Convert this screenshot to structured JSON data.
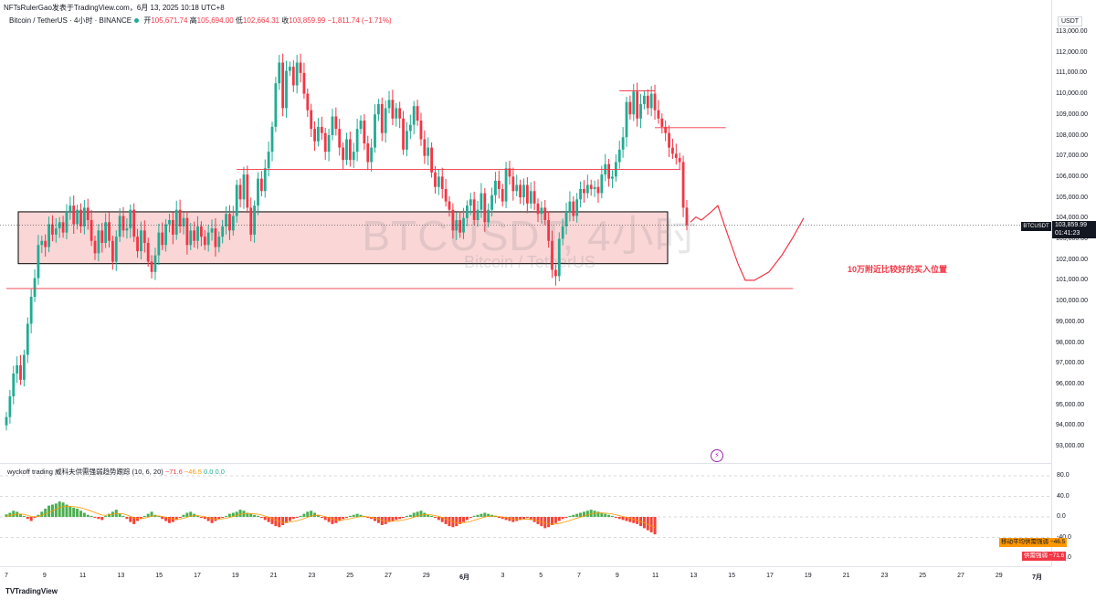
{
  "attribution": "NFTsRulerGao发表于TradingView.com，6月 13, 2025 10:18 UTC+8",
  "symbol": {
    "name": "Bitcoin / TetherUS · 4小时 · BINANCE",
    "open_label": "开",
    "open": "105,671.74",
    "high_label": "高",
    "high": "105,694.00",
    "low_label": "低",
    "low": "102,664.31",
    "close_label": "收",
    "close": "103,859.99",
    "change": "−1,811.74 (−1.71%)"
  },
  "currency": "USDT",
  "price_axis": {
    "ticks": [
      "113,000.00",
      "112,000.00",
      "111,000.00",
      "110,000.00",
      "109,000.00",
      "108,000.00",
      "107,000.00",
      "106,000.00",
      "105,000.00",
      "104,000.00",
      "103,000.00",
      "102,000.00",
      "101,000.00",
      "100,000.00",
      "99,000.00",
      "98,000.00",
      "97,000.00",
      "96,000.00",
      "95,000.00",
      "94,000.00",
      "93,000.00"
    ],
    "values": [
      113000,
      112000,
      111000,
      110000,
      109000,
      108000,
      107000,
      106000,
      105000,
      104000,
      103000,
      102000,
      101000,
      100000,
      99000,
      98000,
      97000,
      96000,
      95000,
      94000,
      93000
    ]
  },
  "last_price": {
    "symbol": "BTCUSDT",
    "price": "103,859.99",
    "countdown": "01:41:23"
  },
  "watermark": {
    "main": "BTCUSDT, 4小时",
    "sub": "Bitcoin / TetherUS"
  },
  "annotation": "10万附近比较好的买入位置",
  "indicator": {
    "title": "wyckoff trading 威科夫供需强弱趋势跟踪 (10, 6, 20)",
    "v1": "−71.6",
    "v2": "−46.5",
    "v3": "0.0",
    "v4": "0.0",
    "ticks": [
      "80.0",
      "40.0",
      "0.0",
      "-40.0",
      "-80.0"
    ],
    "ma_label": "移动平均供需强弱",
    "ma_value": "−46.5",
    "strength_label": "供需强弱",
    "strength_value": "−71.6"
  },
  "time_axis": [
    "7",
    "9",
    "11",
    "13",
    "15",
    "17",
    "19",
    "21",
    "23",
    "25",
    "27",
    "29",
    "6月",
    "3",
    "5",
    "7",
    "9",
    "11",
    "13",
    "15",
    "17",
    "19",
    "21",
    "23",
    "25",
    "27",
    "29",
    "7月"
  ],
  "footer": {
    "logo": "TradingView"
  },
  "colors": {
    "up": "#22ab94",
    "down": "#f23645",
    "zone": "#f8c8c8",
    "hist_up": "#4caf50",
    "hist_down": "#f44336",
    "signal": "#ff9800"
  },
  "chart_data": {
    "type": "candlestick",
    "interval": "4h",
    "ylim": [
      92500,
      113800
    ],
    "closes": [
      94600,
      95600,
      96700,
      97100,
      96400,
      97600,
      99100,
      100400,
      101300,
      102900,
      103100,
      102800,
      103900,
      103400,
      103700,
      104000,
      103500,
      104500,
      104800,
      103900,
      104600,
      103800,
      104700,
      104100,
      103100,
      102500,
      103600,
      103000,
      104000,
      103100,
      102100,
      103300,
      104300,
      103600,
      103700,
      104600,
      103300,
      102600,
      103600,
      103000,
      102100,
      101600,
      102400,
      103500,
      102900,
      103900,
      104100,
      103400,
      104600,
      103800,
      104200,
      102900,
      103600,
      103100,
      103800,
      103300,
      102900,
      103500,
      103700,
      102800,
      103300,
      103800,
      104400,
      103600,
      104300,
      105800,
      105100,
      106300,
      104700,
      103400,
      104800,
      106100,
      105500,
      106600,
      107400,
      108600,
      110700,
      111700,
      109500,
      111300,
      111500,
      110600,
      111700,
      111200,
      110200,
      109400,
      108500,
      107900,
      108600,
      108300,
      107400,
      108200,
      109100,
      108500,
      107600,
      107000,
      108000,
      107000,
      107400,
      108500,
      108900,
      107800,
      106900,
      107600,
      109200,
      109700,
      108300,
      109500,
      109900,
      109000,
      109500,
      109000,
      107500,
      108400,
      108700,
      109600,
      108900,
      108000,
      107200,
      107600,
      106400,
      105700,
      106200,
      105600,
      105000,
      104600,
      103600,
      104100,
      103500,
      104200,
      104800,
      105100,
      104100,
      104600,
      105400,
      104000,
      104600,
      105300,
      106000,
      105600,
      105000,
      106600,
      106200,
      105500,
      105800,
      105200,
      105800,
      104900,
      105500,
      104900,
      104400,
      104700,
      104100,
      103100,
      101700,
      101400,
      103200,
      103800,
      104500,
      105000,
      104300,
      105100,
      105600,
      105400,
      105800,
      105600,
      105700,
      105400,
      106300,
      106800,
      106100,
      106200,
      106900,
      107500,
      108100,
      109800,
      109200,
      110300,
      109000,
      109700,
      110100,
      109500,
      110200,
      109400,
      109000,
      108600,
      108300,
      107600,
      107300,
      107100,
      106900,
      104700,
      103860
    ],
    "series": [
      {
        "name": "BTCUSDT",
        "close_last": 103859.99
      }
    ],
    "lines": [
      {
        "type": "horizontal",
        "price": 106550,
        "from_index": 65,
        "to_index": 190
      },
      {
        "type": "horizontal",
        "price": 108560,
        "from_index": 183,
        "to_index": 203
      },
      {
        "type": "horizontal",
        "price": 110340,
        "from_index": 173,
        "to_index": 183
      },
      {
        "type": "horizontal",
        "price": 100800,
        "from_index": 0,
        "to_index": 222
      }
    ],
    "zone": {
      "top": 104500,
      "bottom": 102000
    },
    "projection": [
      [
        0,
        104000
      ],
      [
        6,
        104250
      ],
      [
        12,
        104100
      ],
      [
        24,
        104550
      ],
      [
        30,
        104800
      ],
      [
        40,
        103500
      ],
      [
        52,
        102000
      ],
      [
        60,
        101200
      ],
      [
        70,
        101200
      ],
      [
        86,
        101600
      ],
      [
        100,
        102400
      ],
      [
        112,
        103250
      ],
      [
        124,
        104200
      ]
    ],
    "indicator_histogram": [
      5,
      8,
      12,
      10,
      6,
      2,
      -4,
      -8,
      -2,
      4,
      10,
      16,
      22,
      24,
      26,
      30,
      28,
      24,
      20,
      18,
      16,
      12,
      8,
      4,
      2,
      -2,
      -4,
      -6,
      2,
      6,
      10,
      14,
      6,
      2,
      -4,
      -10,
      -14,
      -8,
      -4,
      2,
      6,
      10,
      4,
      2,
      -4,
      -8,
      -12,
      -10,
      -6,
      -2,
      4,
      8,
      10,
      6,
      2,
      -2,
      -4,
      -8,
      -12,
      -8,
      -4,
      -2,
      2,
      6,
      8,
      10,
      14,
      12,
      8,
      6,
      4,
      2,
      -2,
      -6,
      -10,
      -14,
      -18,
      -20,
      -16,
      -12,
      -8,
      -4,
      -2,
      2,
      6,
      10,
      12,
      8,
      4,
      -2,
      -6,
      -10,
      -14,
      -12,
      -8,
      -4,
      -2,
      2,
      4,
      6,
      4,
      2,
      -2,
      -4,
      -8,
      -12,
      -16,
      -14,
      -10,
      -8,
      -6,
      -4,
      -2,
      2,
      4,
      8,
      10,
      12,
      8,
      4,
      2,
      -2,
      -6,
      -10,
      -14,
      -18,
      -20,
      -18,
      -14,
      -10,
      -6,
      -2,
      2,
      4,
      6,
      8,
      6,
      4,
      2,
      -2,
      -4,
      -6,
      -8,
      -10,
      -8,
      -6,
      -4,
      -2,
      -6,
      -10,
      -14,
      -18,
      -22,
      -20,
      -16,
      -12,
      -8,
      -4,
      -2,
      2,
      4,
      6,
      8,
      10,
      12,
      14,
      12,
      10,
      8,
      6,
      4,
      2,
      -2,
      -4,
      -6,
      -8,
      -10,
      -12,
      -14,
      -18,
      -22,
      -26,
      -30,
      -34
    ],
    "indicator_ylim": [
      -80,
      80
    ]
  }
}
